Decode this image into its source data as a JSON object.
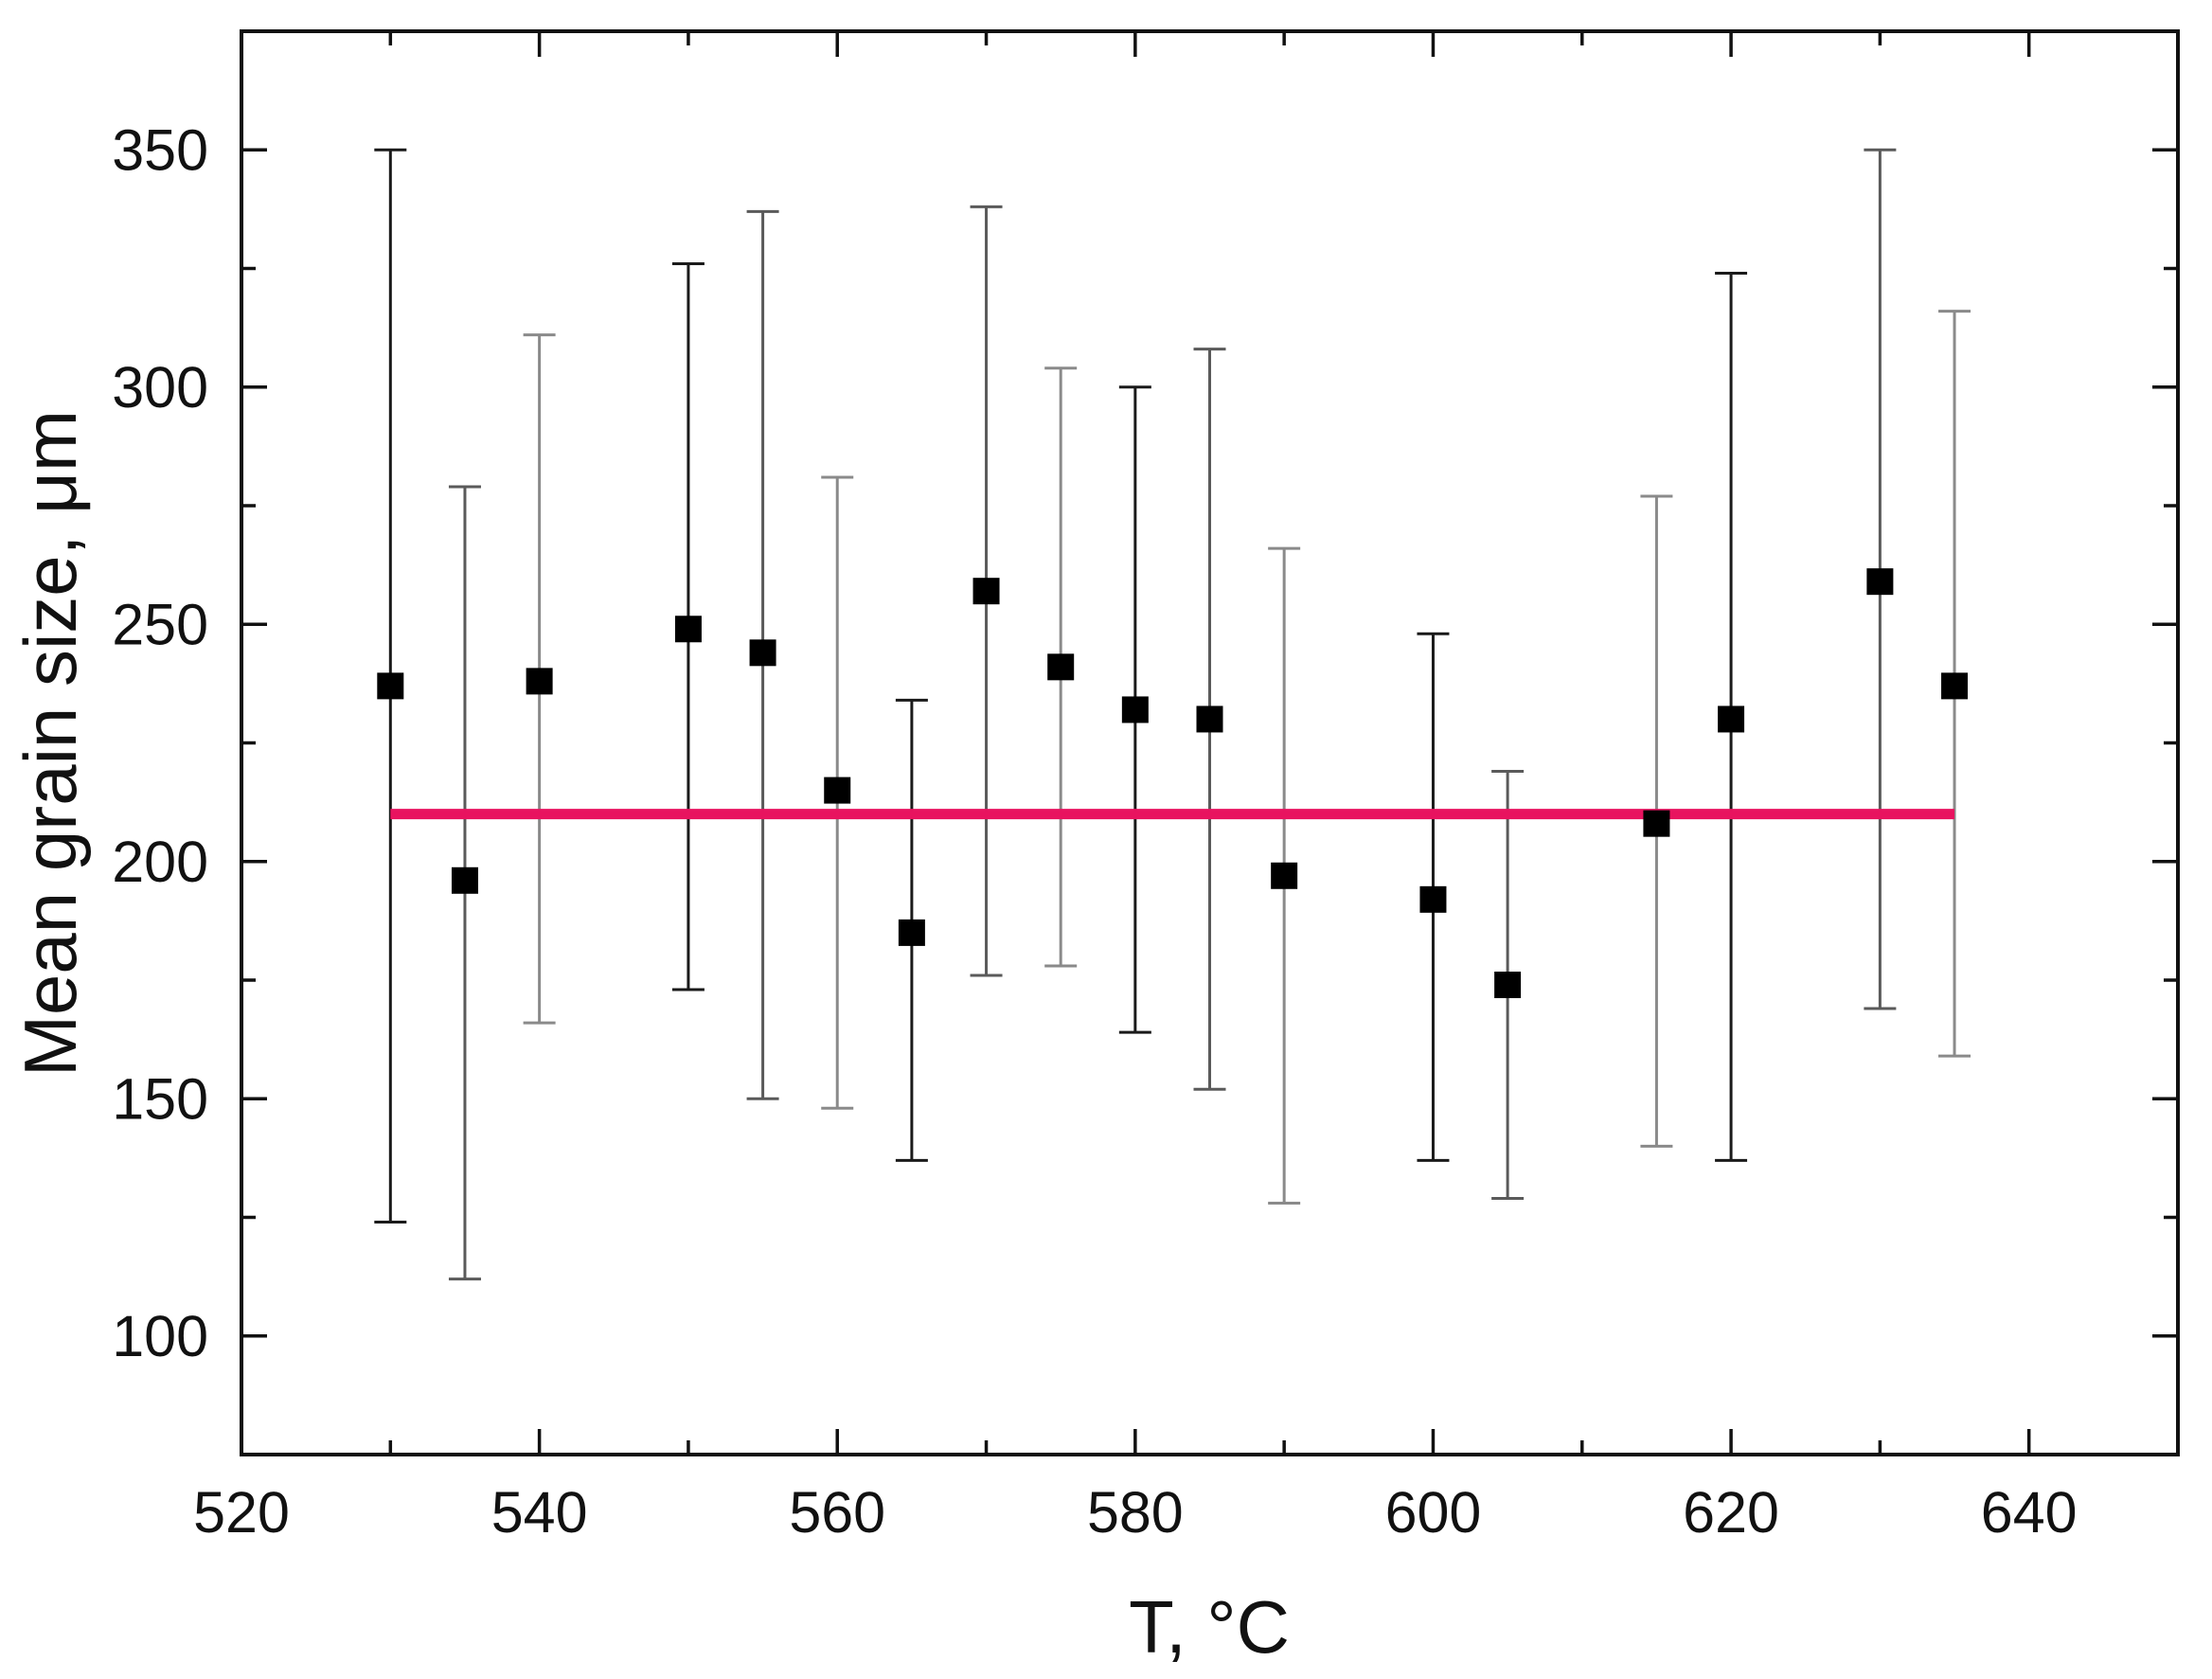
{
  "chart_data": {
    "type": "scatter",
    "title": "",
    "xlabel": "T, °C",
    "ylabel": "Mean grain size, μm",
    "xlim": [
      520,
      650
    ],
    "ylim": [
      75,
      375
    ],
    "x_ticks": [
      520,
      540,
      560,
      580,
      600,
      620,
      640
    ],
    "x_minor_ticks": [
      530,
      550,
      570,
      590,
      610,
      630
    ],
    "y_ticks": [
      100,
      150,
      200,
      250,
      300,
      350
    ],
    "y_minor_ticks": [
      125,
      175,
      225,
      275,
      325
    ],
    "grid": false,
    "legend": "none",
    "marker": "square",
    "marker_color": "#000000",
    "errorbar_colors": [
      "#1a1a1a",
      "#5a5a5a",
      "#8a8a8a"
    ],
    "series": [
      {
        "points": [
          {
            "x": 530,
            "y": 237,
            "ylow": 124,
            "yhigh": 350
          },
          {
            "x": 535,
            "y": 196,
            "ylow": 112,
            "yhigh": 279
          },
          {
            "x": 540,
            "y": 238,
            "ylow": 166,
            "yhigh": 311
          },
          {
            "x": 550,
            "y": 249,
            "ylow": 173,
            "yhigh": 326
          },
          {
            "x": 555,
            "y": 244,
            "ylow": 150,
            "yhigh": 337
          },
          {
            "x": 560,
            "y": 215,
            "ylow": 148,
            "yhigh": 281
          },
          {
            "x": 565,
            "y": 185,
            "ylow": 137,
            "yhigh": 234
          },
          {
            "x": 570,
            "y": 257,
            "ylow": 176,
            "yhigh": 338
          },
          {
            "x": 575,
            "y": 241,
            "ylow": 178,
            "yhigh": 304
          },
          {
            "x": 580,
            "y": 232,
            "ylow": 164,
            "yhigh": 300
          },
          {
            "x": 585,
            "y": 230,
            "ylow": 152,
            "yhigh": 308
          },
          {
            "x": 590,
            "y": 197,
            "ylow": 128,
            "yhigh": 266
          },
          {
            "x": 600,
            "y": 192,
            "ylow": 137,
            "yhigh": 248
          },
          {
            "x": 605,
            "y": 174,
            "ylow": 129,
            "yhigh": 219
          },
          {
            "x": 615,
            "y": 208,
            "ylow": 140,
            "yhigh": 277
          },
          {
            "x": 620,
            "y": 230,
            "ylow": 137,
            "yhigh": 324
          },
          {
            "x": 630,
            "y": 259,
            "ylow": 169,
            "yhigh": 350
          },
          {
            "x": 635,
            "y": 237,
            "ylow": 159,
            "yhigh": 316
          }
        ]
      }
    ],
    "reference_line": {
      "y": 210,
      "x_start": 530,
      "x_end": 635,
      "color": "#e8135f"
    }
  }
}
